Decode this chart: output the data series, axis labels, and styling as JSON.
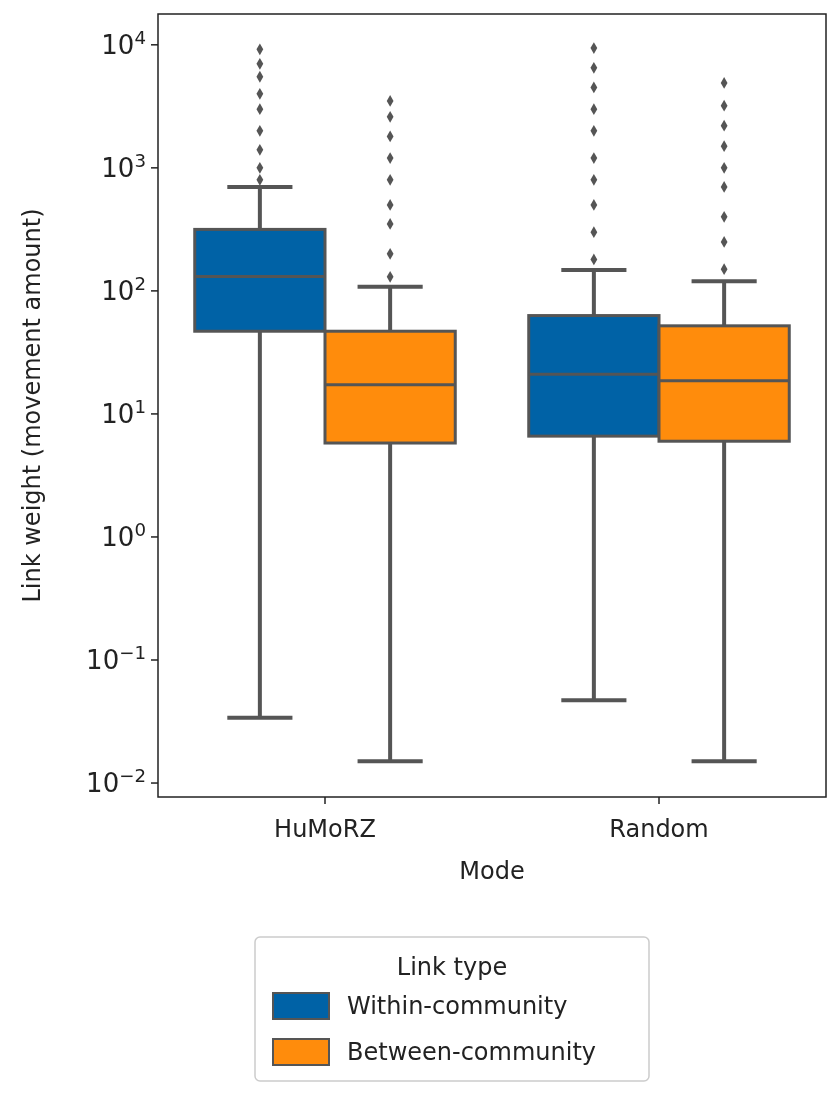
{
  "chart_data": {
    "type": "box",
    "xlabel": "Mode",
    "ylabel": "Link weight (movement amount)",
    "legend_title": "Link type",
    "legend": "bottom",
    "log": true,
    "marker": "diamond",
    "categories": [
      "HuMoRZ",
      "Random"
    ],
    "ylim": [
      0.0077,
      17800
    ],
    "yticks": [
      {
        "value": 0.01,
        "label": "10$^{−2}$"
      },
      {
        "value": 0.1,
        "label": "10$^{−1}$"
      },
      {
        "value": 1,
        "label": "10$^{0}$"
      },
      {
        "value": 10,
        "label": "10$^{1}$"
      },
      {
        "value": 100,
        "label": "10$^{2}$"
      },
      {
        "value": 1000,
        "label": "10$^{3}$"
      },
      {
        "value": 10000,
        "label": "10$^{4}$"
      }
    ],
    "series": [
      {
        "name": "Within-community",
        "color": "#0062a6",
        "boxes": [
          {
            "low": 0.034,
            "q1": 47,
            "median": 131,
            "q3": 316,
            "high": 700,
            "outliers": [
              800,
              1000,
              1400,
              2000,
              3000,
              4000,
              5500,
              7000,
              9200
            ]
          },
          {
            "low": 0.047,
            "q1": 6.6,
            "median": 21,
            "q3": 63,
            "high": 148,
            "outliers": [
              180,
              300,
              500,
              800,
              1200,
              2000,
              3000,
              4500,
              6500,
              9400
            ]
          }
        ]
      },
      {
        "name": "Between-community",
        "color": "#ff8c0c",
        "boxes": [
          {
            "low": 0.015,
            "q1": 5.8,
            "median": 17.3,
            "q3": 47,
            "high": 108,
            "outliers": [
              130,
              200,
              350,
              500,
              800,
              1200,
              1800,
              2600,
              3500
            ]
          },
          {
            "low": 0.015,
            "q1": 6.0,
            "median": 18.6,
            "q3": 52,
            "high": 120,
            "outliers": [
              150,
              250,
              400,
              700,
              1000,
              1500,
              2200,
              3200,
              4900
            ]
          }
        ]
      }
    ]
  }
}
